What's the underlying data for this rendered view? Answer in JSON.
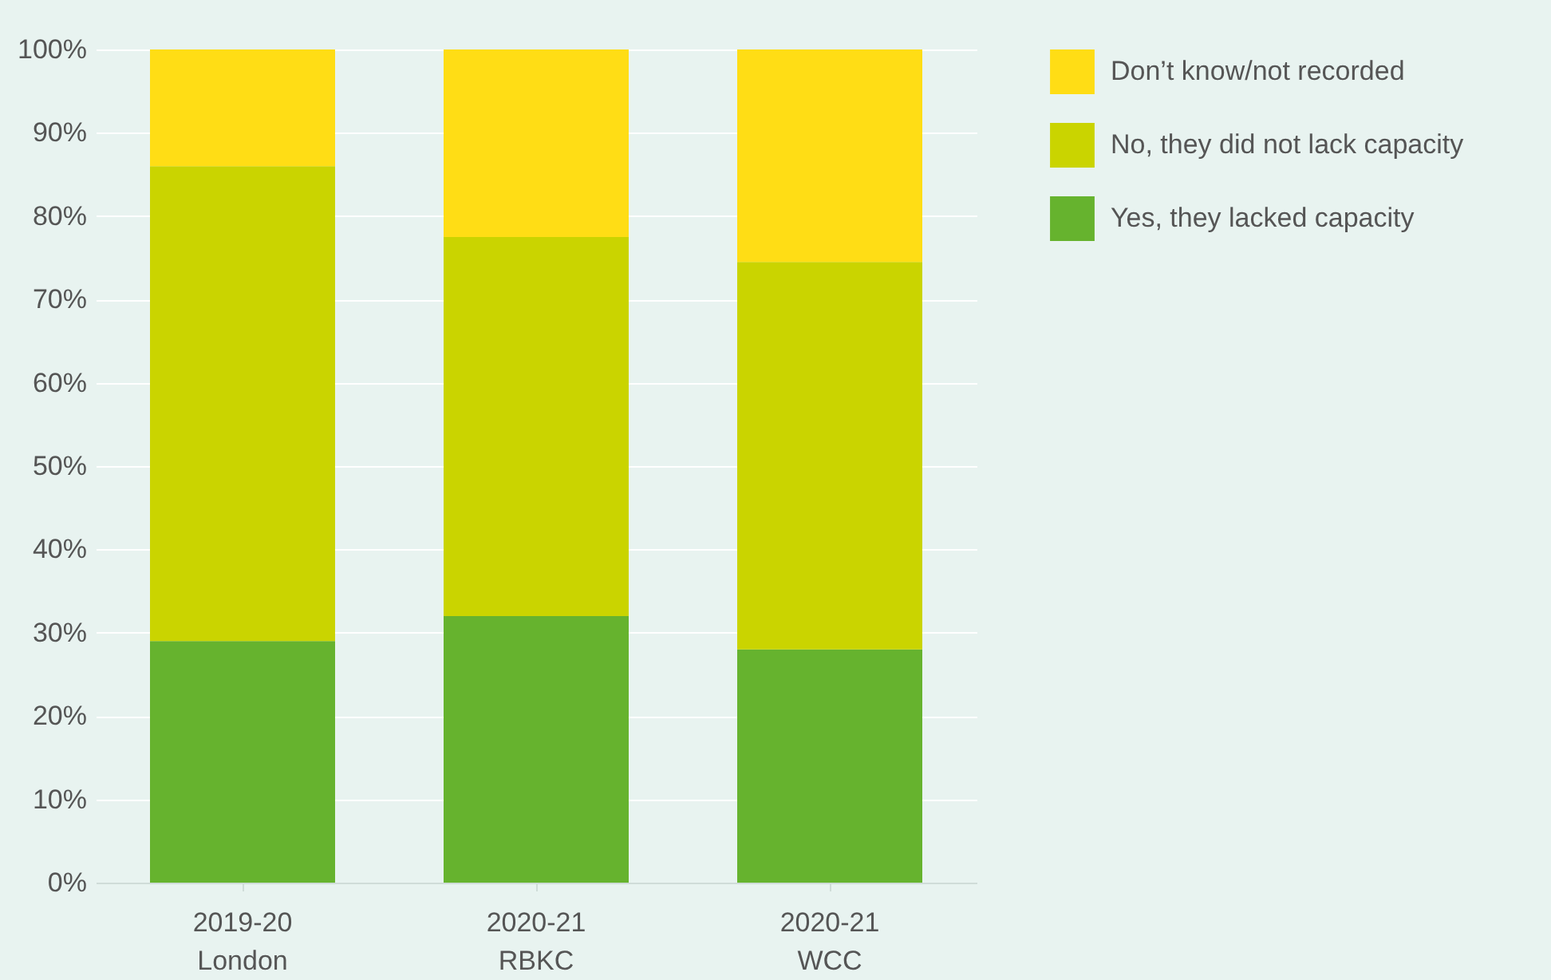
{
  "chart_data": {
    "type": "bar",
    "stacked": true,
    "categories": [
      "2019-20\nLondon",
      "2020-21\nRBKC",
      "2020-21\nWCC"
    ],
    "series": [
      {
        "name": "Yes, they lacked capacity",
        "color": "#66b32e",
        "values": [
          29,
          32,
          28
        ]
      },
      {
        "name": "No, they did not lack capacity",
        "color": "#cad400",
        "values": [
          57,
          45.5,
          46.5
        ]
      },
      {
        "name": "Don’t know/not recorded",
        "color": "#ffdd15",
        "values": [
          14,
          22.5,
          25.5
        ]
      }
    ],
    "ylim": [
      0,
      100
    ],
    "yticks": [
      {
        "value": 0,
        "label": "0%"
      },
      {
        "value": 10,
        "label": "10%"
      },
      {
        "value": 20,
        "label": "20%"
      },
      {
        "value": 30,
        "label": "30%"
      },
      {
        "value": 40,
        "label": "40%"
      },
      {
        "value": 50,
        "label": "50%"
      },
      {
        "value": 60,
        "label": "60%"
      },
      {
        "value": 70,
        "label": "70%"
      },
      {
        "value": 80,
        "label": "80%"
      },
      {
        "value": 90,
        "label": "90%"
      },
      {
        "value": 100,
        "label": "100%"
      }
    ],
    "grid": "y",
    "legend": "top right"
  }
}
